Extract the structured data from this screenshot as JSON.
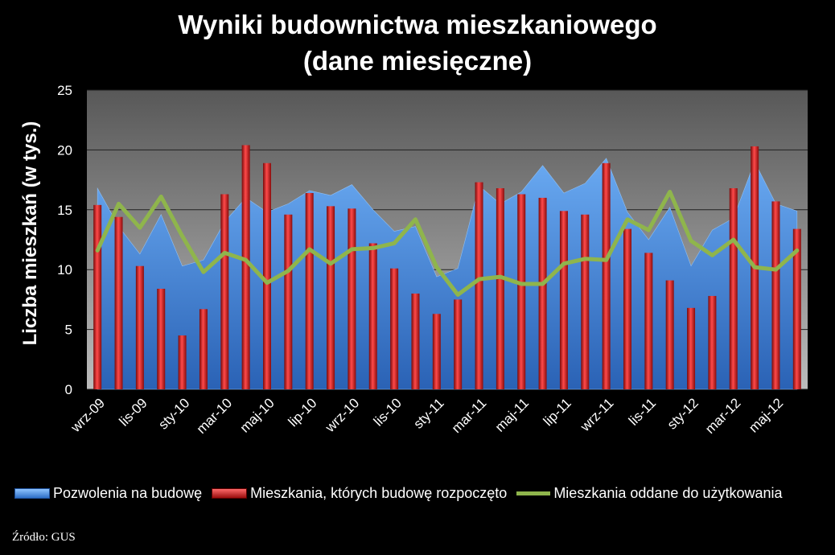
{
  "chart_data": {
    "type": "bar",
    "title": "Wyniki budownictwa mieszkaniowego",
    "subtitle": "(dane miesięczne)",
    "xlabel": "",
    "ylabel": "Liczba mieszkań (w tys.)",
    "ylim": [
      0,
      25
    ],
    "yticks": [
      0,
      5,
      10,
      15,
      20,
      25
    ],
    "grid": true,
    "legend_position": "bottom",
    "categories": [
      "2009-09",
      "2009-10",
      "2009-11",
      "2009-12",
      "2010-01",
      "2010-02",
      "2010-03",
      "2010-04",
      "2010-05",
      "2010-06",
      "2010-07",
      "2010-08",
      "2010-09",
      "2010-10",
      "2010-11",
      "2010-12",
      "2011-01",
      "2011-02",
      "2011-03",
      "2011-04",
      "2011-05",
      "2011-06",
      "2011-07",
      "2011-08",
      "2011-09",
      "2011-10",
      "2011-11",
      "2011-12",
      "2012-01",
      "2012-02",
      "2012-03",
      "2012-04",
      "2012-05",
      "2012-06"
    ],
    "tick_labels": [
      "wrz-09",
      "lis-09",
      "sty-10",
      "mar-10",
      "maj-10",
      "lip-10",
      "wrz-10",
      "lis-10",
      "sty-11",
      "mar-11",
      "maj-11",
      "lip-11",
      "wrz-11",
      "lis-11",
      "sty-12",
      "mar-12",
      "maj-12"
    ],
    "series": [
      {
        "name": "Pozwolenia na budowę",
        "type": "area",
        "color": "#3f86df",
        "values": [
          16.8,
          13.6,
          11.3,
          14.6,
          10.3,
          10.8,
          14.0,
          16.0,
          14.8,
          15.5,
          16.6,
          16.2,
          17.1,
          15.0,
          13.2,
          13.6,
          9.4,
          10.1,
          17.0,
          15.5,
          16.5,
          18.7,
          16.4,
          17.2,
          19.3,
          14.8,
          12.5,
          15.2,
          10.3,
          13.3,
          14.3,
          19.0,
          15.5,
          14.9
        ]
      },
      {
        "name": "Mieszkania, których budowę rozpoczęto",
        "type": "bar",
        "color": "#d42020",
        "values": [
          15.4,
          14.4,
          10.3,
          8.4,
          4.5,
          6.7,
          16.3,
          20.4,
          18.9,
          14.6,
          16.4,
          15.3,
          15.1,
          12.2,
          10.1,
          8.0,
          6.3,
          7.5,
          17.3,
          16.8,
          16.3,
          16.0,
          14.9,
          14.6,
          18.9,
          13.4,
          11.4,
          9.1,
          6.8,
          7.8,
          16.8,
          20.3,
          15.7,
          13.4
        ]
      },
      {
        "name": "Mieszkania oddane do użytkowania",
        "type": "line",
        "color": "#8fb54c",
        "values": [
          11.6,
          15.5,
          13.5,
          16.1,
          12.8,
          9.8,
          11.4,
          10.8,
          8.9,
          9.9,
          11.7,
          10.5,
          11.7,
          11.8,
          12.2,
          14.2,
          10.2,
          7.9,
          9.2,
          9.4,
          8.8,
          8.8,
          10.5,
          10.9,
          10.8,
          14.2,
          13.3,
          16.5,
          12.4,
          11.2,
          12.5,
          10.2,
          10.0,
          11.6
        ]
      }
    ]
  },
  "source": "Źródło: GUS"
}
